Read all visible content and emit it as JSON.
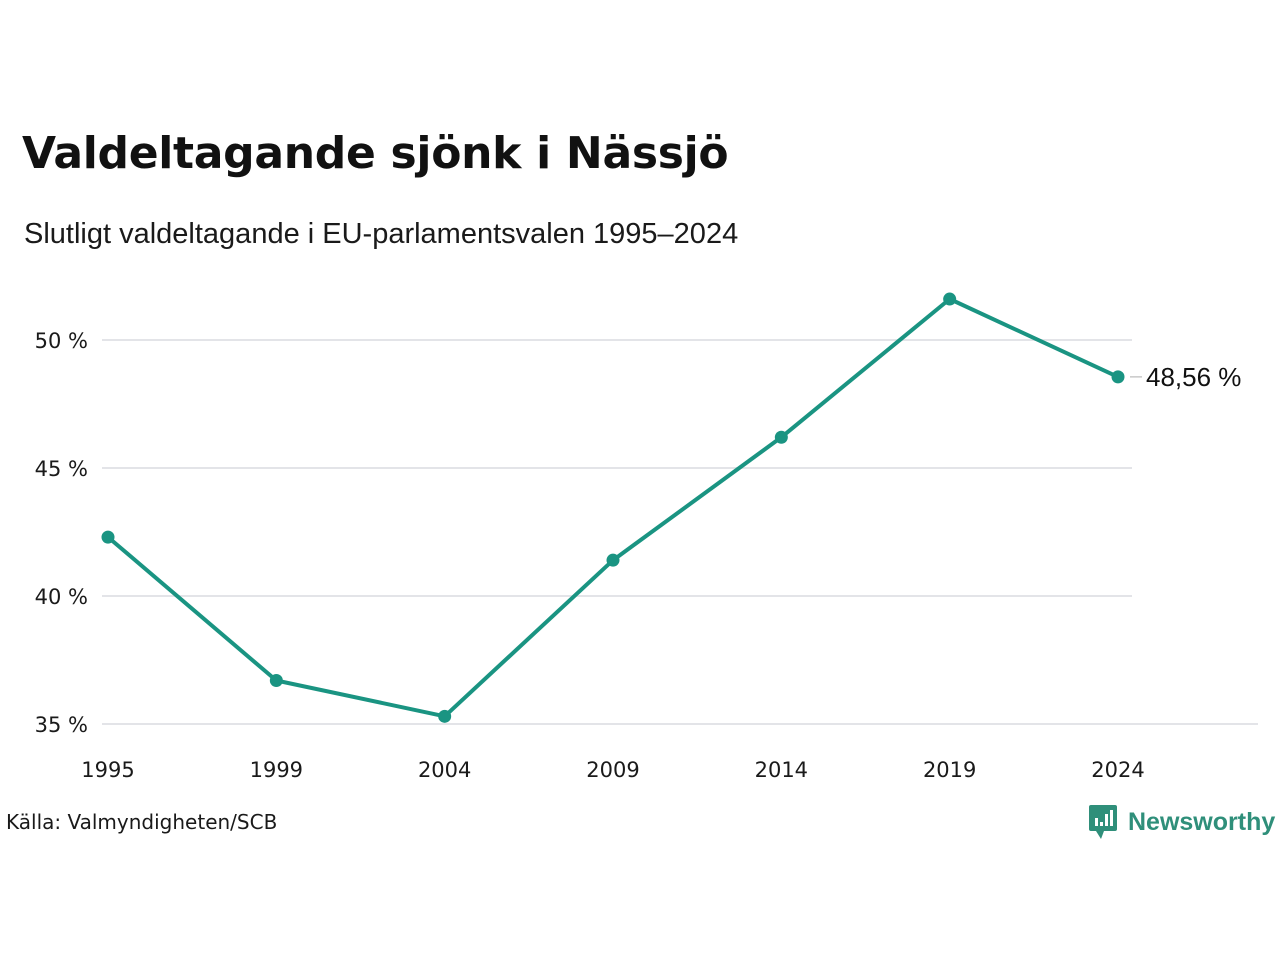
{
  "header": {
    "title": "Valdeltagande sjönk i Nässjö",
    "subtitle": "Slutligt valdeltagande i EU-parlamentsvalen 1995–2024"
  },
  "footer": {
    "source": "Källa: Valmyndigheten/SCB",
    "brand": "Newsworthy"
  },
  "colors": {
    "line": "#1a9482",
    "grid": "#e3e4e8",
    "brand": "#2f8f7a"
  },
  "icons": {
    "brand_logo": "newsworthy-logo-icon"
  },
  "chart_data": {
    "type": "line",
    "title": "Valdeltagande sjönk i Nässjö",
    "subtitle": "Slutligt valdeltagande i EU-parlamentsvalen 1995–2024",
    "xlabel": "",
    "ylabel": "",
    "x": [
      "1995",
      "1999",
      "2004",
      "2009",
      "2014",
      "2019",
      "2024"
    ],
    "series": [
      {
        "values": [
          42.3,
          36.7,
          35.3,
          41.4,
          46.2,
          51.6,
          48.56
        ]
      }
    ],
    "ylim": [
      35,
      52
    ],
    "yticks": [
      35,
      40,
      45,
      50
    ],
    "ytick_labels": [
      "35 %",
      "40 %",
      "45 %",
      "50 %"
    ],
    "end_label": "48,56 %",
    "grid": true,
    "legend": "none"
  }
}
